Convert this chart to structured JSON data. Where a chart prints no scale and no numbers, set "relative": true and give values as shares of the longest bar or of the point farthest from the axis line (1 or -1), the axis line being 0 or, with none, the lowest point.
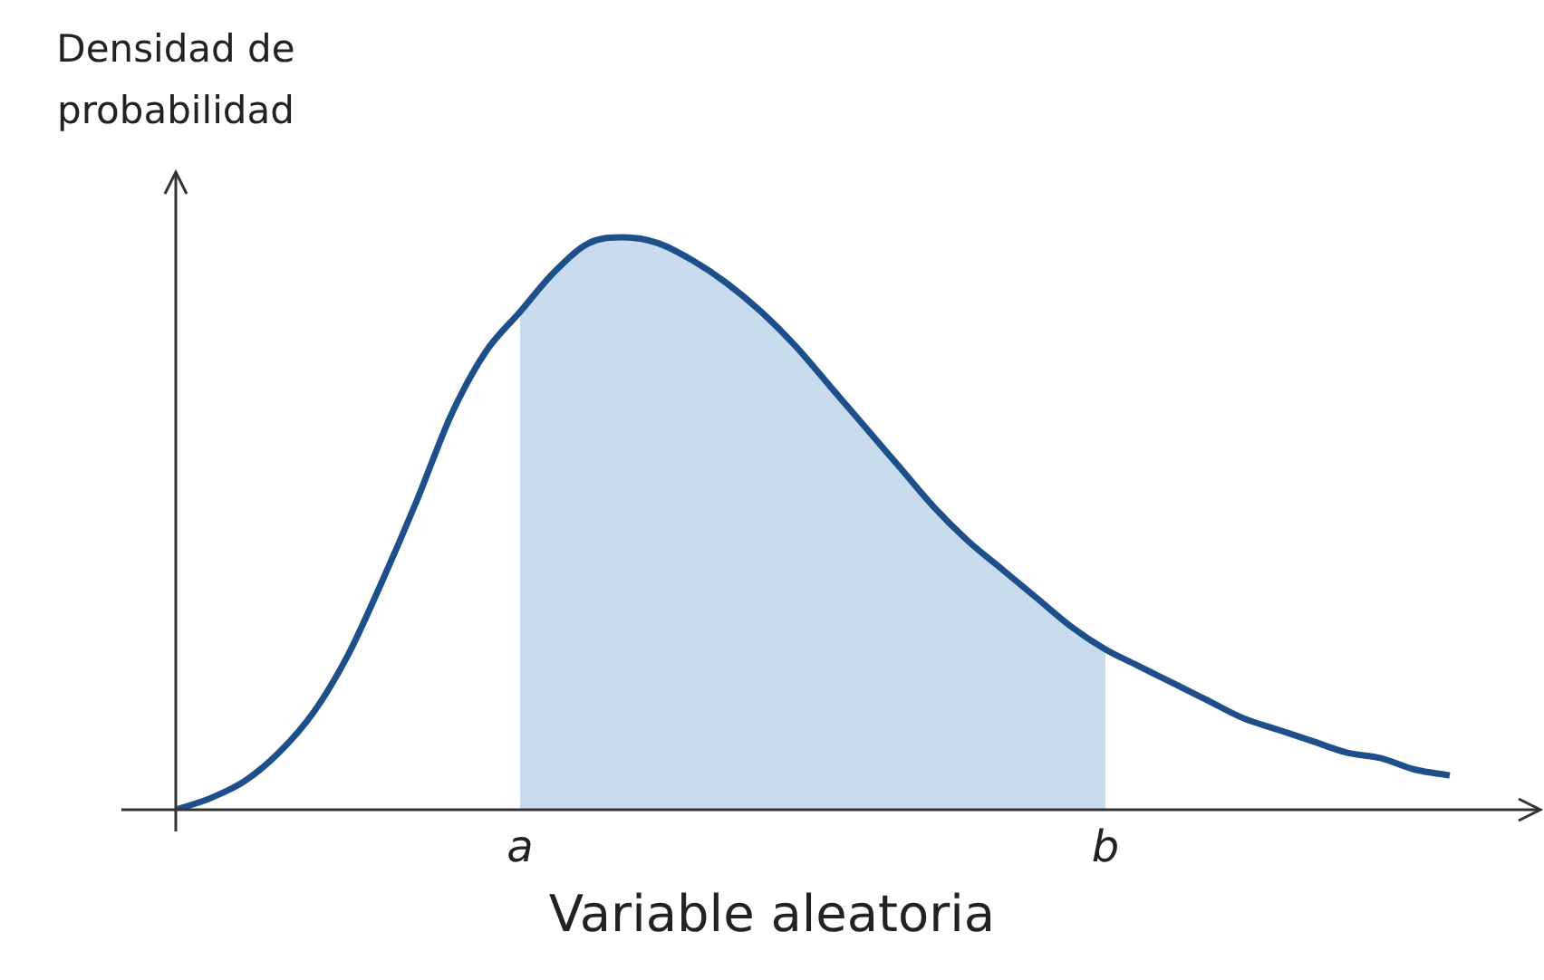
{
  "chart_data": {
    "type": "line",
    "relative": true,
    "xlabel": "Variable aleatoria",
    "ylabel": "Densidad de probabilidad",
    "categories": [
      null,
      null,
      null,
      null,
      null,
      null,
      null,
      null,
      null,
      null,
      "a",
      null,
      null,
      null,
      null,
      null,
      null,
      null,
      null,
      null,
      null,
      null,
      null,
      null,
      null,
      null,
      null,
      "b",
      null,
      null,
      null,
      null,
      null,
      null,
      null,
      null,
      null,
      null
    ],
    "series": [
      {
        "type": "area",
        "color": "#c9dcef",
        "values": [
          null,
          null,
          null,
          null,
          null,
          null,
          null,
          null,
          null,
          null,
          0.87,
          0.94,
          0.99,
          1.0,
          0.99,
          0.96,
          0.92,
          0.87,
          0.81,
          0.74,
          0.67,
          0.6,
          0.53,
          0.47,
          0.42,
          0.37,
          0.32,
          0.28,
          null,
          null,
          null,
          null,
          null,
          null,
          null,
          null,
          null,
          null
        ]
      },
      {
        "color": "#1d4f8a",
        "values": [
          0,
          0.02,
          0.05,
          0.1,
          0.17,
          0.27,
          0.4,
          0.54,
          0.69,
          0.8,
          0.87,
          0.94,
          0.99,
          1.0,
          0.99,
          0.96,
          0.92,
          0.87,
          0.81,
          0.74,
          0.67,
          0.6,
          0.53,
          0.47,
          0.42,
          0.37,
          0.32,
          0.28,
          0.25,
          0.22,
          0.19,
          0.16,
          0.14,
          0.12,
          0.1,
          0.09,
          0.07,
          0.06
        ]
      }
    ],
    "legend": false,
    "marker": "none"
  }
}
